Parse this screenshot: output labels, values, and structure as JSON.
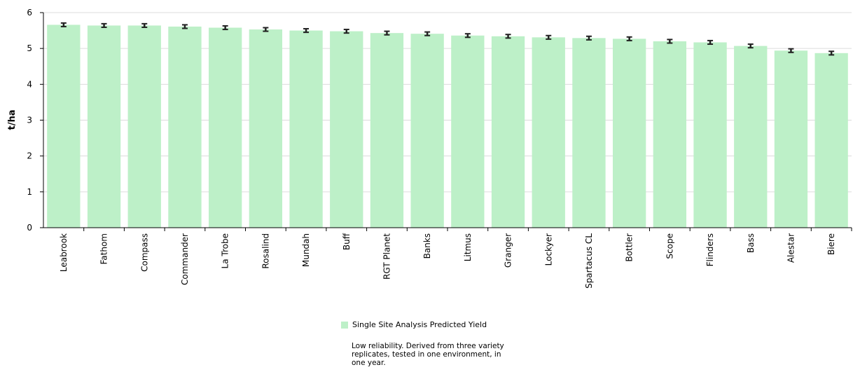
{
  "chart_data": {
    "type": "bar",
    "ylabel": "t/ha",
    "xlabel": "",
    "ylim": [
      0,
      6
    ],
    "yticks": [
      0,
      1,
      2,
      3,
      4,
      5,
      6
    ],
    "grid": true,
    "legend_position": "bottom-center",
    "bar_color": "#bdf0c8",
    "errorbar_color": "#222222",
    "categories": [
      "Leabrook",
      "Fathom",
      "Compass",
      "Commander",
      "La Trobe",
      "Rosalind",
      "Mundah",
      "Buff",
      "RGT Planet",
      "Banks",
      "Litmus",
      "Granger",
      "Lockyer",
      "Spartacus CL",
      "Bottler",
      "Scope",
      "Flinders",
      "Bass",
      "Alestar",
      "Biere"
    ],
    "series": [
      {
        "name": "Single Site Analysis Predicted Yield",
        "values": [
          5.66,
          5.64,
          5.64,
          5.61,
          5.58,
          5.53,
          5.5,
          5.48,
          5.43,
          5.41,
          5.36,
          5.34,
          5.31,
          5.29,
          5.27,
          5.2,
          5.17,
          5.07,
          4.94,
          4.87
        ],
        "error": 0.05
      }
    ]
  },
  "legend": {
    "label": "Single Site Analysis Predicted Yield"
  },
  "note": {
    "text": "Low reliability. Derived from three variety replicates, tested in one environment, in one year."
  }
}
